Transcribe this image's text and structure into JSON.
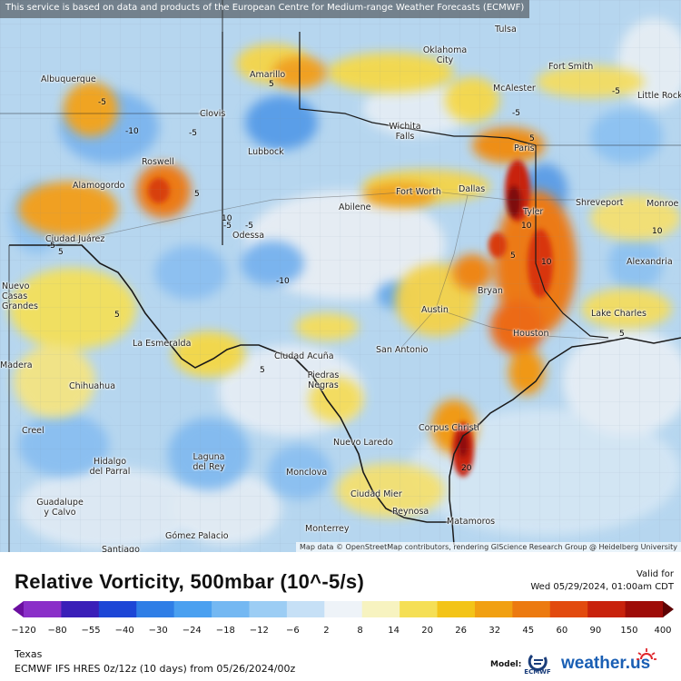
{
  "notice": "This service is based on data and products of the European Centre for Medium-range Weather Forecasts (ECMWF)",
  "attribution": "Map data © OpenStreetMap contributors, rendering GIScience Research Group @ Heidelberg University",
  "title": "Relative Vorticity, 500mbar (10^-5/s)",
  "valid_label": "Valid for",
  "valid_time": "Wed 05/29/2024, 01:00am CDT",
  "region": "Texas",
  "model_run": "ECMWF IFS HRES 0z/12z (10 days) from  05/26/2024/00z",
  "model_label": "Model:",
  "model_logo_text": "ECMWF",
  "brand": "weather.us",
  "legend": {
    "ticks": [
      "−120",
      "−80",
      "−55",
      "−40",
      "−30",
      "−24",
      "−18",
      "−12",
      "−6",
      "2",
      "8",
      "14",
      "20",
      "26",
      "32",
      "45",
      "60",
      "90",
      "150",
      "400"
    ],
    "colors": [
      "#6b0fa0",
      "#8a2fc8",
      "#3a1fb8",
      "#1d46d6",
      "#2f7ee6",
      "#4aa0f0",
      "#74b8f2",
      "#9ccdf4",
      "#c6e0f6",
      "#eef3f8",
      "#f7f3c0",
      "#f5df55",
      "#f3c418",
      "#f1a012",
      "#ec7a10",
      "#e24a0e",
      "#c8220c",
      "#9e0c08",
      "#5e0404"
    ]
  },
  "cities": [
    {
      "name": "Tulsa"
    },
    {
      "name": "Oklahoma City"
    },
    {
      "name": "Fort Smith"
    },
    {
      "name": "Albuquerque"
    },
    {
      "name": "Amarillo"
    },
    {
      "name": "McAlester"
    },
    {
      "name": "Little Rock"
    },
    {
      "name": "Clovis"
    },
    {
      "name": "Wichita Falls"
    },
    {
      "name": "Paris"
    },
    {
      "name": "Lubbock"
    },
    {
      "name": "Roswell"
    },
    {
      "name": "Alamogordo"
    },
    {
      "name": "Fort Worth"
    },
    {
      "name": "Dallas"
    },
    {
      "name": "Shreveport"
    },
    {
      "name": "Monroe"
    },
    {
      "name": "Abilene"
    },
    {
      "name": "Tyler"
    },
    {
      "name": "Ciudad Juárez"
    },
    {
      "name": "Odessa"
    },
    {
      "name": "Alexandria"
    },
    {
      "name": "Nuevo Casas Grandes"
    },
    {
      "name": "Bryan"
    },
    {
      "name": "Austin"
    },
    {
      "name": "Lake Charles"
    },
    {
      "name": "La Esmeralda"
    },
    {
      "name": "Houston"
    },
    {
      "name": "Ciudad Acuña"
    },
    {
      "name": "San Antonio"
    },
    {
      "name": "Piedras Negras"
    },
    {
      "name": "Chihuahua"
    },
    {
      "name": "Corpus Christi"
    },
    {
      "name": "Nuevo Laredo"
    },
    {
      "name": "Hidalgo del Parral"
    },
    {
      "name": "Laguna del Rey"
    },
    {
      "name": "Monclova"
    },
    {
      "name": "Ciudad Mier"
    },
    {
      "name": "Guadalupe y Calvo"
    },
    {
      "name": "Reynosa"
    },
    {
      "name": "Matamoros"
    },
    {
      "name": "Monterrey"
    },
    {
      "name": "Gómez Palacio"
    },
    {
      "name": "Creel"
    },
    {
      "name": "Madera"
    },
    {
      "name": "Santiago"
    }
  ],
  "contour_values": [
    "-5",
    "-5",
    "-10",
    "-5",
    "-5",
    "5",
    "5",
    "-5",
    "10",
    "-5",
    "-10",
    "5",
    "5",
    "5",
    "5",
    "10",
    "10",
    "5",
    "20",
    "5",
    "-5",
    "10"
  ]
}
